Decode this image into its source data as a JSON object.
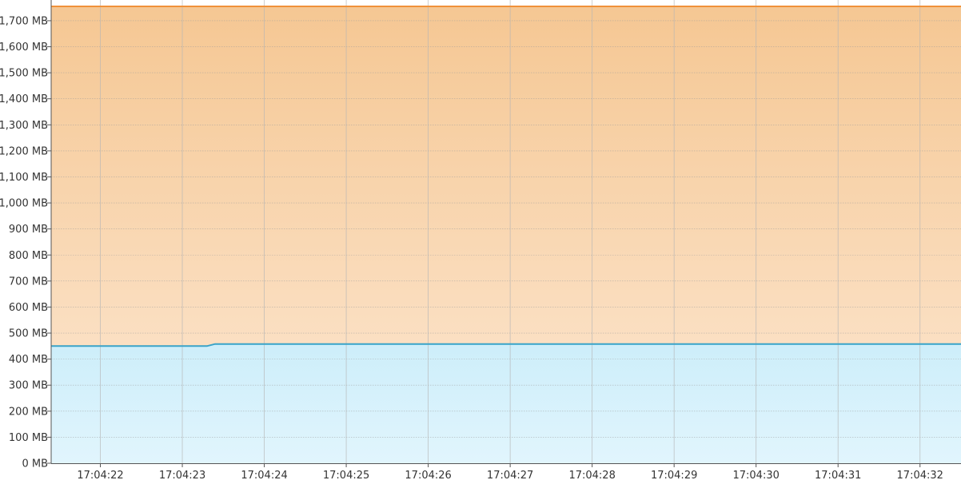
{
  "chart_data": {
    "type": "area",
    "title": "",
    "xlabel": "",
    "ylabel": "",
    "x_ticks": [
      "17:04:22",
      "17:04:23",
      "17:04:24",
      "17:04:25",
      "17:04:26",
      "17:04:27",
      "17:04:28",
      "17:04:29",
      "17:04:30",
      "17:04:31",
      "17:04:32"
    ],
    "y_ticks": [
      "0 MB",
      "100 MB",
      "200 MB",
      "300 MB",
      "400 MB",
      "500 MB",
      "600 MB",
      "700 MB",
      "800 MB",
      "900 MB",
      "1,000 MB",
      "1,100 MB",
      "1,200 MB",
      "1,300 MB",
      "1,400 MB",
      "1,500 MB",
      "1,600 MB",
      "1,700 MB"
    ],
    "ylim": [
      0,
      1755
    ],
    "xlim": [
      "17:04:21.4",
      "17:04:32.5"
    ],
    "grid": true,
    "legend": "none",
    "series": [
      {
        "color": "#f0913a",
        "fill_top": "#f5c793",
        "fill_bottom": "#fde8d3",
        "points": [
          {
            "x": "17:04:21.4",
            "y": 1755
          },
          {
            "x": "17:04:32.5",
            "y": 1755
          }
        ]
      },
      {
        "color": "#3aa3c8",
        "fill_top": "#cdeefa",
        "fill_bottom": "#e1f5fd",
        "points": [
          {
            "x": "17:04:21.4",
            "y": 450
          },
          {
            "x": "17:04:23.3",
            "y": 450
          },
          {
            "x": "17:04:23.4",
            "y": 458
          },
          {
            "x": "17:04:32.5",
            "y": 458
          }
        ]
      }
    ]
  }
}
